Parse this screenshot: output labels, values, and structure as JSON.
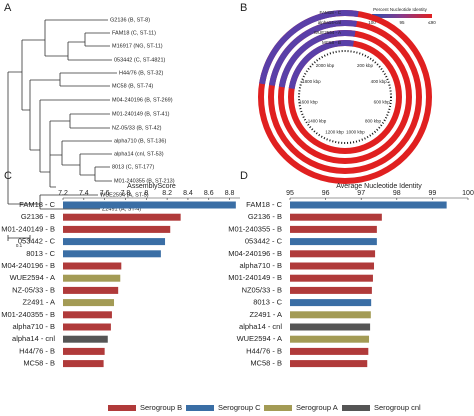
{
  "tree": {
    "panel": "A",
    "scale_label": "0.1",
    "leaves": [
      "G2136 (B, ST-8)",
      "FAM18 (C, ST-11)",
      "M16917 (NG, ST-11)",
      "053442 (C, ST-4821)",
      "H44/76 (B, ST-32)",
      "MC58 (B, ST-74)",
      "M04-240196 (B, ST-269)",
      "M01-240149 (B, ST-41)",
      "NZ-05/33 (B, ST-42)",
      "alpha710 (B, ST-136)",
      "alpha14 (cnl, ST-53)",
      "8013 (C, ST-177)",
      "M01-240355 (B, ST-213)",
      "WUE2594 (A, ST-5)",
      "Z2491 (A, ST-4)"
    ]
  },
  "ring_plot": {
    "panel": "B",
    "legend_title": "Percent Nucleotide Identity",
    "legend_labels": [
      "100",
      "95",
      "≤90"
    ],
    "rings": [
      "FAM18 - C",
      "alpha14-cnl",
      "WUE2594 - A",
      "MC58 - B"
    ],
    "positions": [
      "200 kbp",
      "400 kbp",
      "600 kbp",
      "800 kbp",
      "1000 kbp",
      "1200 kbp",
      "1400 kbp",
      "1600 kbp",
      "1800 kbp",
      "2000 kbp"
    ]
  },
  "legend": [
    {
      "name": "Serogroup B",
      "color": "#b03a3a"
    },
    {
      "name": "Serogroup C",
      "color": "#3a6ea5"
    },
    {
      "name": "Serogroup A",
      "color": "#a39b55"
    },
    {
      "name": "Serogroup cnl",
      "color": "#555555"
    }
  ],
  "chart_data": [
    {
      "type": "bar",
      "orientation": "horizontal",
      "panel": "C",
      "x_label": "AssemblyScore",
      "categories": [
        "FAM18 - C",
        "G2136 - B",
        "M01-240149 - B",
        "053442 - C",
        "8013 - C",
        "M04-240196 - B",
        "WUE2594 - A",
        "NZ-05/33 - B",
        "Z2491 - A",
        "M01-240355 - B",
        "alpha710 - B",
        "alpha14 - cnl",
        "H44/76 - B",
        "MC58 - B"
      ],
      "values": [
        8.86,
        8.33,
        8.23,
        8.18,
        8.14,
        7.76,
        7.75,
        7.73,
        7.69,
        7.67,
        7.66,
        7.63,
        7.6,
        7.59
      ],
      "colors": [
        "#3a6ea5",
        "#b03a3a",
        "#b03a3a",
        "#3a6ea5",
        "#3a6ea5",
        "#b03a3a",
        "#a39b55",
        "#b03a3a",
        "#a39b55",
        "#b03a3a",
        "#b03a3a",
        "#555555",
        "#b03a3a",
        "#b03a3a"
      ],
      "xlim": [
        7.2,
        8.9
      ],
      "xticks": [
        7.2,
        7.4,
        7.6,
        7.8,
        8,
        8.2,
        8.4,
        8.6,
        8.8
      ]
    },
    {
      "type": "bar",
      "orientation": "horizontal",
      "panel": "D",
      "x_label": "Average Nucleotide Identity",
      "categories": [
        "FAM18 - C",
        "G2136 - B",
        "M01-240355 - B",
        "053442 - C",
        "M04-240196 - B",
        "alpha710 - B",
        "M01-240149 - B",
        "NZ05/33 - B",
        "8013 - C",
        "Z2491 - A",
        "alpha14 - cnl",
        "WUE2594 - A",
        "H44/76 - B",
        "MC58 - B"
      ],
      "values": [
        99.4,
        97.58,
        97.44,
        97.44,
        97.39,
        97.36,
        97.33,
        97.3,
        97.28,
        97.27,
        97.25,
        97.22,
        97.2,
        97.17
      ],
      "colors": [
        "#3a6ea5",
        "#b03a3a",
        "#b03a3a",
        "#3a6ea5",
        "#b03a3a",
        "#b03a3a",
        "#b03a3a",
        "#b03a3a",
        "#3a6ea5",
        "#a39b55",
        "#555555",
        "#a39b55",
        "#b03a3a",
        "#b03a3a"
      ],
      "xlim": [
        95,
        100
      ],
      "xticks": [
        95,
        96,
        97,
        98,
        99,
        100
      ]
    }
  ]
}
